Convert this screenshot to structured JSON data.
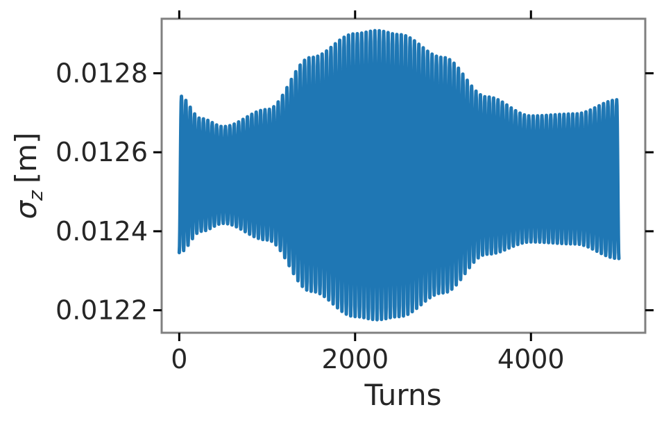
{
  "chart_data": {
    "type": "line",
    "title": "",
    "xlabel": "Turns",
    "ylabel_symbol": "σ",
    "ylabel_subscript": "z",
    "ylabel_unit": "[m]",
    "xlim": [
      -200,
      5300
    ],
    "ylim": [
      0.012143,
      0.012938
    ],
    "xticks": [
      0,
      2000,
      4000
    ],
    "xtick_labels": [
      "0",
      "2000",
      "4000"
    ],
    "yticks": [
      0.0122,
      0.0124,
      0.0126,
      0.0128
    ],
    "ytick_labels": [
      "0.0122",
      "0.0124",
      "0.0126",
      "0.0128"
    ],
    "grid": false,
    "series": [
      {
        "color": "#1f77b4",
        "oscillation_period_turns": 50,
        "x_range": [
          0,
          5000
        ],
        "envelope": {
          "x": [
            0,
            250,
            500,
            1000,
            1500,
            2000,
            2250,
            2500,
            3000,
            3500,
            4000,
            4500,
            5000
          ],
          "upper": [
            0.012743,
            0.012685,
            0.012665,
            0.012708,
            0.01284,
            0.0129,
            0.012908,
            0.012898,
            0.01284,
            0.01274,
            0.012692,
            0.012697,
            0.012733
          ],
          "lower": [
            0.012346,
            0.0124,
            0.01242,
            0.012378,
            0.012248,
            0.012184,
            0.012176,
            0.012184,
            0.012244,
            0.012342,
            0.012373,
            0.012368,
            0.012331
          ]
        }
      }
    ]
  }
}
